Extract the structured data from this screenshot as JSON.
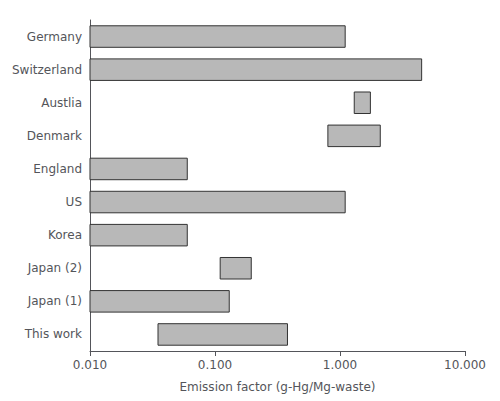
{
  "chart_data": {
    "type": "bar",
    "orientation": "horizontal",
    "log": "x",
    "categories": [
      "Germany",
      "Switzerland",
      "Austlia",
      "Denmark",
      "England",
      "US",
      "Korea",
      "Japan (2)",
      "Japan (1)",
      "This work"
    ],
    "values": [
      [
        0.01,
        1.1
      ],
      [
        0.01,
        4.5
      ],
      [
        1.3,
        1.75
      ],
      [
        0.8,
        2.1
      ],
      [
        0.01,
        0.06
      ],
      [
        0.01,
        1.1
      ],
      [
        0.01,
        0.06
      ],
      [
        0.11,
        0.195
      ],
      [
        0.01,
        0.13
      ],
      [
        0.035,
        0.38
      ]
    ],
    "color": "#b8b8b8",
    "xlabel": "Emission factor (g-Hg/Mg-waste)",
    "xlim": [
      0.01,
      10.0
    ],
    "xticks": [
      {
        "value": 0.01,
        "label": "0.010"
      },
      {
        "value": 0.1,
        "label": "0.100"
      },
      {
        "value": 1.0,
        "label": "1.000"
      },
      {
        "value": 10.0,
        "label": "10.000"
      }
    ],
    "grid": false
  }
}
